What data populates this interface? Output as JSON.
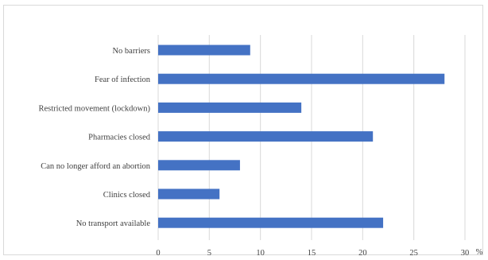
{
  "chart_data": {
    "type": "bar",
    "orientation": "horizontal",
    "categories": [
      "No barriers",
      "Fear of infection",
      "Restricted movement (lockdown)",
      "Pharmacies closed",
      "Can no longer afford an abortion",
      "Clinics closed",
      "No transport available"
    ],
    "values": [
      9,
      28,
      14,
      21,
      8,
      6,
      22
    ],
    "xticks": [
      "0",
      "5",
      "10",
      "15",
      "20",
      "25",
      "30"
    ],
    "xlim": [
      0,
      30
    ],
    "unit": "%",
    "grid": "vertical",
    "bar_color": "#4472c4",
    "grid_color": "#d9d9d9"
  }
}
